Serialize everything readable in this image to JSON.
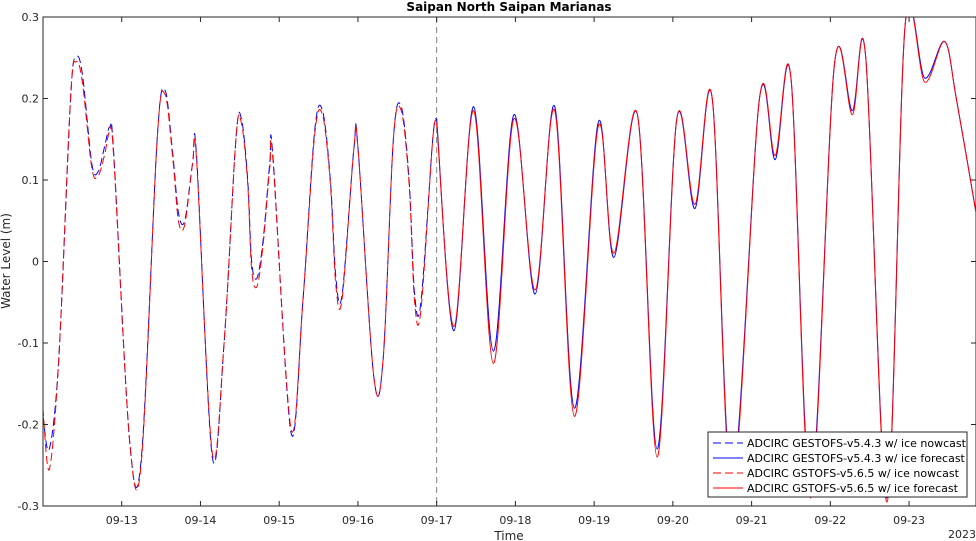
{
  "chart_data": {
    "type": "line",
    "title": "Saipan North Saipan Marianas",
    "xlabel": "Time",
    "ylabel": "Water Level (m)",
    "ylim": [
      -0.3,
      0.3
    ],
    "yticks": [
      -0.3,
      -0.2,
      -0.1,
      0,
      0.1,
      0.2,
      0.3
    ],
    "ytick_labels": [
      "-0.3",
      "-0.2",
      "-0.1",
      "0",
      "0.1",
      "0.2",
      "0.3"
    ],
    "xlim": [
      12.0,
      23.85
    ],
    "xticks": [
      13,
      14,
      15,
      16,
      17,
      18,
      19,
      20,
      21,
      22,
      23
    ],
    "xtick_labels": [
      "09-13",
      "09-14",
      "09-15",
      "09-16",
      "09-17",
      "09-18",
      "09-19",
      "09-20",
      "09-21",
      "09-22",
      "09-23"
    ],
    "xaxis_year": "2023",
    "nowcast_forecast_divider": 17,
    "grid": false,
    "legend_position": "bottom-right",
    "colors": {
      "gestofs": "#0000ff",
      "gstofs": "#ff0000",
      "divider": "#808080",
      "axis": "#262626"
    },
    "series": [
      {
        "name": "ADCIRC GESTOFS-v5.4.3 w/ ice nowcast",
        "color": "#0000ff",
        "style": "dashed",
        "x": [
          12.0,
          12.08,
          12.2,
          12.35,
          12.42,
          12.5,
          12.62,
          12.7,
          12.78,
          12.85,
          12.9,
          13.1,
          13.25,
          13.45,
          13.55,
          13.65,
          13.72,
          13.8,
          13.9,
          13.95,
          14.15,
          14.3,
          14.45,
          14.52,
          14.6,
          14.65,
          14.72,
          14.8,
          14.88,
          14.92,
          15.15,
          15.3,
          15.45,
          15.55,
          15.65,
          15.72,
          15.8,
          15.95,
          16.0,
          16.2,
          16.32,
          16.45,
          16.55,
          16.65,
          16.72,
          16.8,
          16.95,
          17.0
        ],
        "y": [
          -0.19,
          -0.23,
          -0.12,
          0.2,
          0.25,
          0.23,
          0.12,
          0.11,
          0.14,
          0.165,
          0.13,
          -0.22,
          -0.24,
          0.15,
          0.21,
          0.13,
          0.06,
          0.05,
          0.12,
          0.13,
          -0.24,
          -0.1,
          0.15,
          0.175,
          0.1,
          0.0,
          -0.02,
          0.03,
          0.12,
          0.13,
          -0.21,
          -0.05,
          0.16,
          0.185,
          0.1,
          -0.02,
          -0.04,
          0.14,
          0.14,
          -0.14,
          -0.12,
          0.15,
          0.19,
          0.1,
          -0.04,
          -0.05,
          0.15,
          0.175
        ]
      },
      {
        "name": "ADCIRC GESTOFS-v5.4.3 w/ ice forecast",
        "color": "#0000ff",
        "style": "solid",
        "x": [
          17.0,
          17.22,
          17.47,
          17.72,
          17.98,
          18.25,
          18.5,
          18.75,
          19.05,
          19.25,
          19.55,
          19.8,
          20.05,
          20.28,
          20.5,
          20.75,
          21.1,
          21.3,
          21.5,
          21.75,
          22.05,
          22.28,
          22.45,
          22.72,
          22.95,
          23.2,
          23.45,
          23.6,
          23.85
        ],
        "y": [
          0.175,
          -0.085,
          0.19,
          -0.11,
          0.18,
          -0.04,
          0.19,
          -0.18,
          0.17,
          0.005,
          0.18,
          -0.23,
          0.175,
          0.065,
          0.2,
          -0.27,
          0.2,
          0.125,
          0.225,
          -0.28,
          0.24,
          0.185,
          0.25,
          -0.29,
          0.29,
          0.225,
          0.27,
          0.2,
          0.06
        ]
      },
      {
        "name": "ADCIRC GSTOFS-v5.6.5 w/ ice nowcast",
        "color": "#ff0000",
        "style": "dashed",
        "x": [
          12.0,
          12.08,
          12.2,
          12.35,
          12.42,
          12.5,
          12.62,
          12.7,
          12.78,
          12.85,
          12.9,
          13.1,
          13.25,
          13.45,
          13.55,
          13.65,
          13.72,
          13.8,
          13.9,
          13.95,
          14.15,
          14.3,
          14.45,
          14.52,
          14.6,
          14.65,
          14.72,
          14.8,
          14.88,
          14.92,
          15.15,
          15.3,
          15.45,
          15.55,
          15.65,
          15.72,
          15.8,
          15.95,
          16.0,
          16.2,
          16.32,
          16.45,
          16.55,
          16.65,
          16.72,
          16.8,
          16.95,
          17.0
        ],
        "y": [
          -0.18,
          -0.255,
          -0.12,
          0.2,
          0.245,
          0.22,
          0.115,
          0.105,
          0.13,
          0.16,
          0.125,
          -0.22,
          -0.245,
          0.15,
          0.205,
          0.125,
          0.05,
          0.045,
          0.12,
          0.125,
          -0.235,
          -0.1,
          0.15,
          0.17,
          0.095,
          -0.01,
          -0.03,
          0.025,
          0.115,
          0.125,
          -0.205,
          -0.05,
          0.155,
          0.18,
          0.095,
          -0.03,
          -0.045,
          0.14,
          0.14,
          -0.14,
          -0.12,
          0.15,
          0.185,
          0.095,
          -0.05,
          -0.06,
          0.15,
          0.17
        ]
      },
      {
        "name": "ADCIRC GSTOFS-v5.6.5 w/ ice forecast",
        "color": "#ff0000",
        "style": "solid",
        "x": [
          17.0,
          17.22,
          17.47,
          17.72,
          17.98,
          18.25,
          18.5,
          18.75,
          19.05,
          19.25,
          19.55,
          19.8,
          20.05,
          20.28,
          20.5,
          20.75,
          21.1,
          21.3,
          21.5,
          21.75,
          22.05,
          22.28,
          22.45,
          22.72,
          22.95,
          23.2,
          23.45,
          23.6,
          23.85
        ],
        "y": [
          0.17,
          -0.08,
          0.185,
          -0.125,
          0.175,
          -0.035,
          0.185,
          -0.19,
          0.165,
          0.01,
          0.18,
          -0.24,
          0.175,
          0.07,
          0.2,
          -0.28,
          0.2,
          0.13,
          0.225,
          -0.29,
          0.24,
          0.18,
          0.25,
          -0.295,
          0.29,
          0.22,
          0.27,
          0.2,
          0.06
        ]
      }
    ]
  }
}
